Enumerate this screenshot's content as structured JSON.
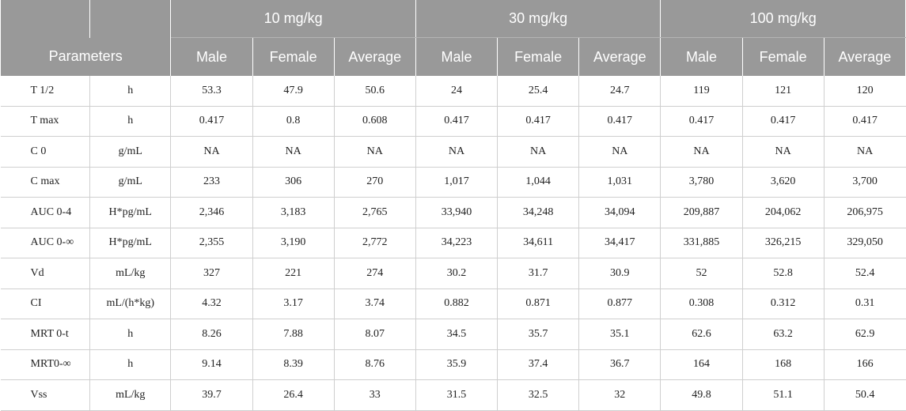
{
  "header": {
    "parameters_label": "Parameters",
    "dose_groups": [
      "10 mg/kg",
      "30 mg/kg",
      "100 mg/kg"
    ],
    "sub_columns": [
      "Male",
      "Female",
      "Average"
    ]
  },
  "rows": [
    {
      "param": "T 1/2",
      "unit": "h",
      "values": [
        "53.3",
        "47.9",
        "50.6",
        "24",
        "25.4",
        "24.7",
        "119",
        "121",
        "120"
      ]
    },
    {
      "param": "T max",
      "unit": "h",
      "values": [
        "0.417",
        "0.8",
        "0.608",
        "0.417",
        "0.417",
        "0.417",
        "0.417",
        "0.417",
        "0.417"
      ]
    },
    {
      "param": "C 0",
      "unit": "g/mL",
      "values": [
        "NA",
        "NA",
        "NA",
        "NA",
        "NA",
        "NA",
        "NA",
        "NA",
        "NA"
      ]
    },
    {
      "param": "C max",
      "unit": "g/mL",
      "values": [
        "233",
        "306",
        "270",
        "1,017",
        "1,044",
        "1,031",
        "3,780",
        "3,620",
        "3,700"
      ]
    },
    {
      "param": "AUC 0-4",
      "unit": "H*pg/mL",
      "values": [
        "2,346",
        "3,183",
        "2,765",
        "33,940",
        "34,248",
        "34,094",
        "209,887",
        "204,062",
        "206,975"
      ]
    },
    {
      "param": "AUC 0-∞",
      "unit": "H*pg/mL",
      "values": [
        "2,355",
        "3,190",
        "2,772",
        "34,223",
        "34,611",
        "34,417",
        "331,885",
        "326,215",
        "329,050"
      ]
    },
    {
      "param": "Vd",
      "unit": "mL/kg",
      "values": [
        "327",
        "221",
        "274",
        "30.2",
        "31.7",
        "30.9",
        "52",
        "52.8",
        "52.4"
      ]
    },
    {
      "param": "CI",
      "unit": "mL/(h*kg)",
      "values": [
        "4.32",
        "3.17",
        "3.74",
        "0.882",
        "0.871",
        "0.877",
        "0.308",
        "0.312",
        "0.31"
      ]
    },
    {
      "param": "MRT 0-t",
      "unit": "h",
      "values": [
        "8.26",
        "7.88",
        "8.07",
        "34.5",
        "35.7",
        "35.1",
        "62.6",
        "63.2",
        "62.9"
      ]
    },
    {
      "param": "MRT0-∞",
      "unit": "h",
      "values": [
        "9.14",
        "8.39",
        "8.76",
        "35.9",
        "37.4",
        "36.7",
        "164",
        "168",
        "166"
      ]
    },
    {
      "param": "Vss",
      "unit": "mL/kg",
      "values": [
        "39.7",
        "26.4",
        "33",
        "31.5",
        "32.5",
        "32",
        "49.8",
        "51.1",
        "50.4"
      ]
    }
  ],
  "colors": {
    "header_background": "#999999",
    "header_text": "#ffffff",
    "grid_line": "#cfcfcf"
  }
}
